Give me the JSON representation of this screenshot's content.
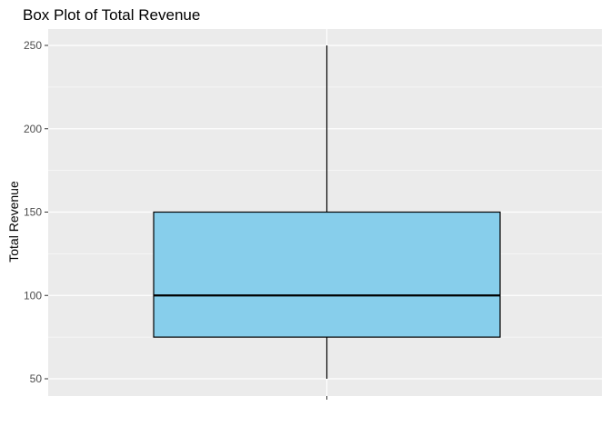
{
  "chart_data": {
    "type": "box",
    "title": "Box Plot of Total Revenue",
    "xlabel": "",
    "ylabel": "Total Revenue",
    "ylim": [
      40,
      260
    ],
    "yticks": [
      50,
      100,
      150,
      200,
      250
    ],
    "grid": true,
    "legend": "none",
    "box": {
      "min": 50,
      "q1": 75,
      "median": 100,
      "q3": 150,
      "max": 250
    },
    "colors": {
      "panel_background": "#ebebeb",
      "grid": "#ffffff",
      "box_fill": "#87ceeb",
      "box_stroke": "#000000"
    }
  }
}
